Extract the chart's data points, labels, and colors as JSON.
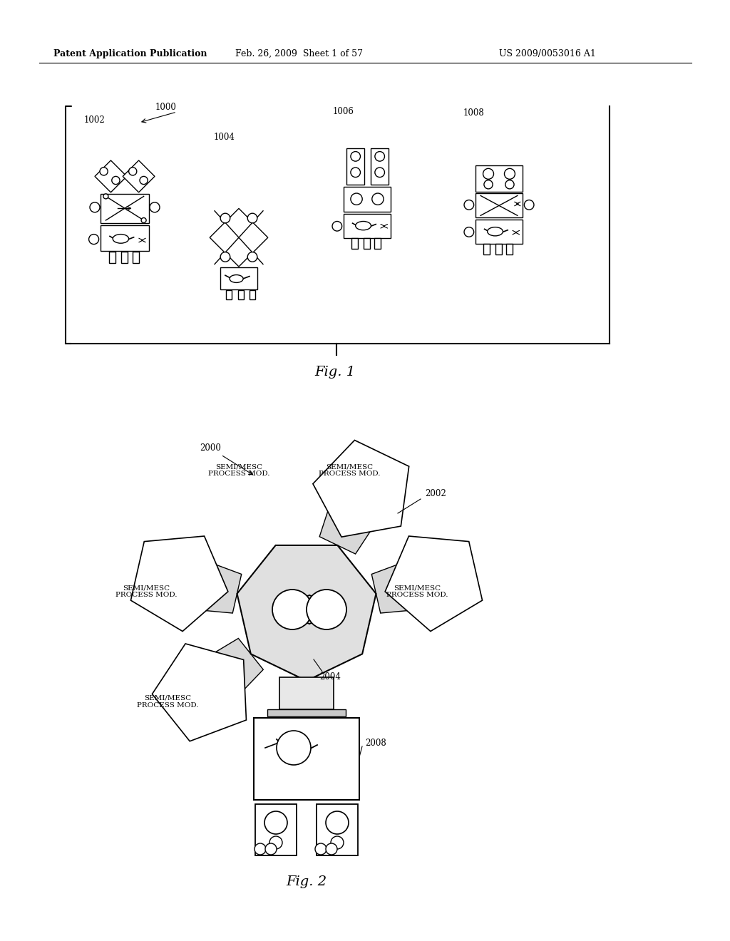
{
  "background_color": "#ffffff",
  "header_left": "Patent Application Publication",
  "header_center": "Feb. 26, 2009  Sheet 1 of 57",
  "header_right": "US 2009/0053016 A1",
  "fig1_label": "Fig. 1",
  "fig2_label": "Fig. 2",
  "label_1000": "1000",
  "label_1002": "1002",
  "label_1004": "1004",
  "label_1006": "1006",
  "label_1008": "1008",
  "label_2000": "2000",
  "label_2002": "2002",
  "label_2004": "2004",
  "label_2008": "2008",
  "process_mod_labels": [
    "SEMI/MESC\nPROCESS MOD.",
    "SEMI/MESC\nPROCESS MOD.",
    "SEMI/MESC\nPROCESS MOD.",
    "SEMI/MESC\nPROCESS MOD.",
    "SEMI/MESC\nPROCESS MOD."
  ]
}
